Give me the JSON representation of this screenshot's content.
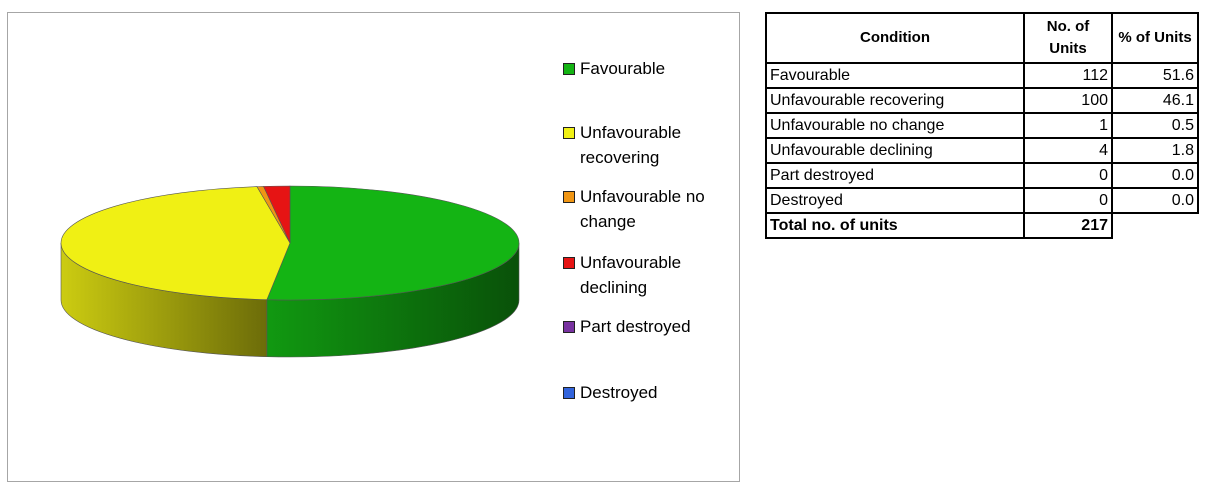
{
  "chart_data": {
    "type": "pie",
    "categories": [
      "Favourable",
      "Unfavourable recovering",
      "Unfavourable no change",
      "Unfavourable declining",
      "Part destroyed",
      "Destroyed"
    ],
    "values": [
      112,
      100,
      1,
      4,
      0,
      0
    ],
    "colors": [
      "#14b414",
      "#f0f014",
      "#f09614",
      "#e61414",
      "#7832a0",
      "#3264dc"
    ],
    "legend": {
      "position": "right"
    },
    "style": "3d"
  },
  "table": {
    "headers": [
      "Condition",
      "No. of Units",
      "% of Units"
    ],
    "rows": [
      [
        "Favourable",
        "112",
        "51.6"
      ],
      [
        "Unfavourable recovering",
        "100",
        "46.1"
      ],
      [
        "Unfavourable no change",
        "1",
        "0.5"
      ],
      [
        "Unfavourable declining",
        "4",
        "1.8"
      ],
      [
        "Part destroyed",
        "0",
        "0.0"
      ],
      [
        "Destroyed",
        "0",
        "0.0"
      ]
    ],
    "total": {
      "label": "Total no. of units",
      "value": "217"
    }
  }
}
